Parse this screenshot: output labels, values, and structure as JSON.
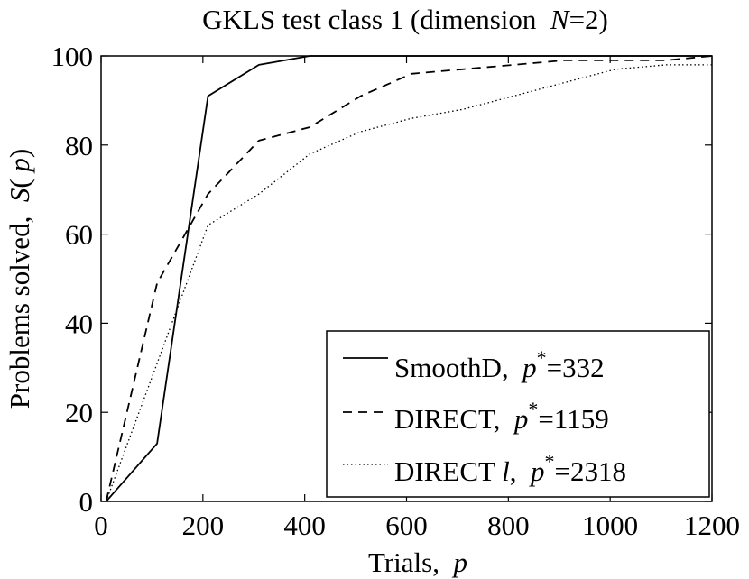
{
  "chart_data": {
    "type": "line",
    "title_parts": [
      "GKLS test class 1 (dimension  ",
      "N",
      "=2)"
    ],
    "xlabel_parts": [
      "Trials,  ",
      "p"
    ],
    "ylabel_parts": [
      "Problems solved,  ",
      "S",
      "( ",
      "p",
      ")"
    ],
    "xlim": [
      0,
      1200
    ],
    "ylim": [
      0,
      100
    ],
    "x_ticks": [
      0,
      200,
      400,
      600,
      800,
      1000,
      1200
    ],
    "y_ticks": [
      0,
      20,
      40,
      60,
      80,
      100
    ],
    "x_tick_labels": [
      "0",
      "200",
      "400",
      "600",
      "800",
      "1000",
      "1200"
    ],
    "y_tick_labels": [
      "0",
      "20",
      "40",
      "60",
      "80",
      "100"
    ],
    "grid": false,
    "legend_position": "bottom-right",
    "series": [
      {
        "name_parts": [
          "SmoothD,  ",
          "p",
          "*",
          "=332"
        ],
        "style": "solid",
        "x": [
          10,
          110,
          210,
          310,
          410,
          510,
          610,
          710,
          810,
          910,
          1010,
          1110,
          1200
        ],
        "y": [
          0,
          13,
          91,
          98,
          100,
          100,
          100,
          100,
          100,
          100,
          100,
          100,
          100
        ]
      },
      {
        "name_parts": [
          "DIRECT,  ",
          "p",
          "*",
          "=1159"
        ],
        "style": "dashed",
        "x": [
          10,
          110,
          210,
          310,
          410,
          510,
          610,
          710,
          810,
          910,
          1010,
          1110,
          1200
        ],
        "y": [
          0,
          49,
          69,
          81,
          84,
          91,
          96,
          97,
          98,
          99,
          99,
          99,
          100
        ]
      },
      {
        "name_parts": [
          "DIRECT ",
          "l",
          ",  ",
          "p",
          "*",
          "=2318"
        ],
        "style": "dotted",
        "x": [
          10,
          110,
          210,
          310,
          410,
          510,
          610,
          710,
          810,
          910,
          1010,
          1110,
          1200
        ],
        "y": [
          0,
          31,
          62,
          69,
          78,
          83,
          86,
          88,
          91,
          94,
          97,
          98,
          98
        ]
      }
    ]
  }
}
